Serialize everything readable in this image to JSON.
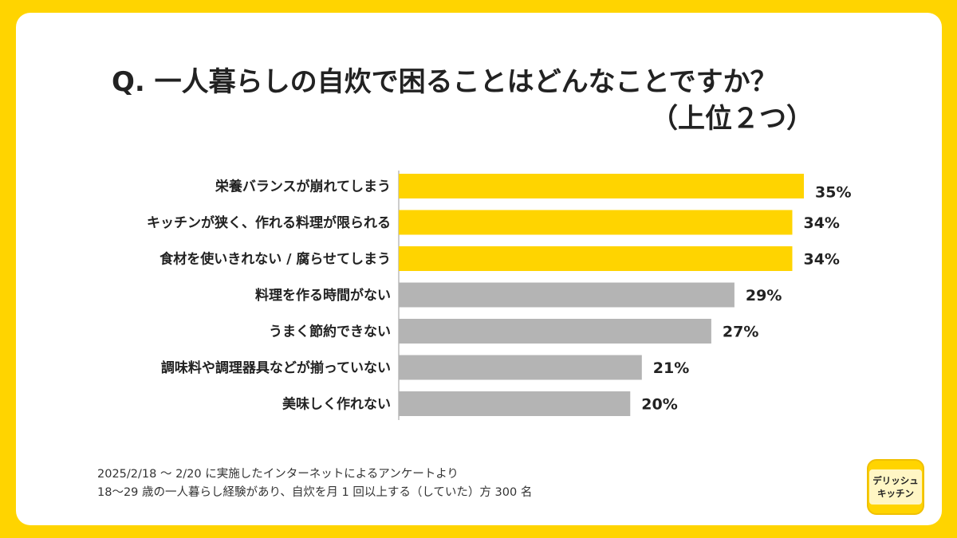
{
  "title": {
    "line1": "Q. 一人暮らしの自炊で困ることはどんなことですか？",
    "line2": "（上位２つ）"
  },
  "chart_data": {
    "type": "bar",
    "orientation": "horizontal",
    "categories": [
      "栄養バランスが崩れてしまう",
      "キッチンが狭く、作れる料理が限られる",
      "食材を使いきれない / 腐らせてしまう",
      "料理を作る時間がない",
      "うまく節約できない",
      "調味料や調理器具などが揃っていない",
      "美味しく作れない"
    ],
    "values": [
      35,
      34,
      34,
      29,
      27,
      21,
      20
    ],
    "value_labels": [
      "35%",
      "34%",
      "34%",
      "29%",
      "27%",
      "21%",
      "20%"
    ],
    "highlighted": [
      true,
      true,
      true,
      false,
      false,
      false,
      false
    ],
    "unit": "%",
    "xlim": [
      0,
      35
    ],
    "colors": {
      "highlight": "#FFD400",
      "normal": "#B4B4B4",
      "axis": "#999999",
      "text": "#222222"
    }
  },
  "footnote": {
    "line1": "2025/2/18 ～ 2/20 に実施したインターネットによるアンケートより",
    "line2": "18～29 歳の一人暮らし経験があり、自炊を月 1 回以上する（していた）方 300 名"
  },
  "logo": {
    "line1": "デリッシュ",
    "line2": "キッチン"
  }
}
